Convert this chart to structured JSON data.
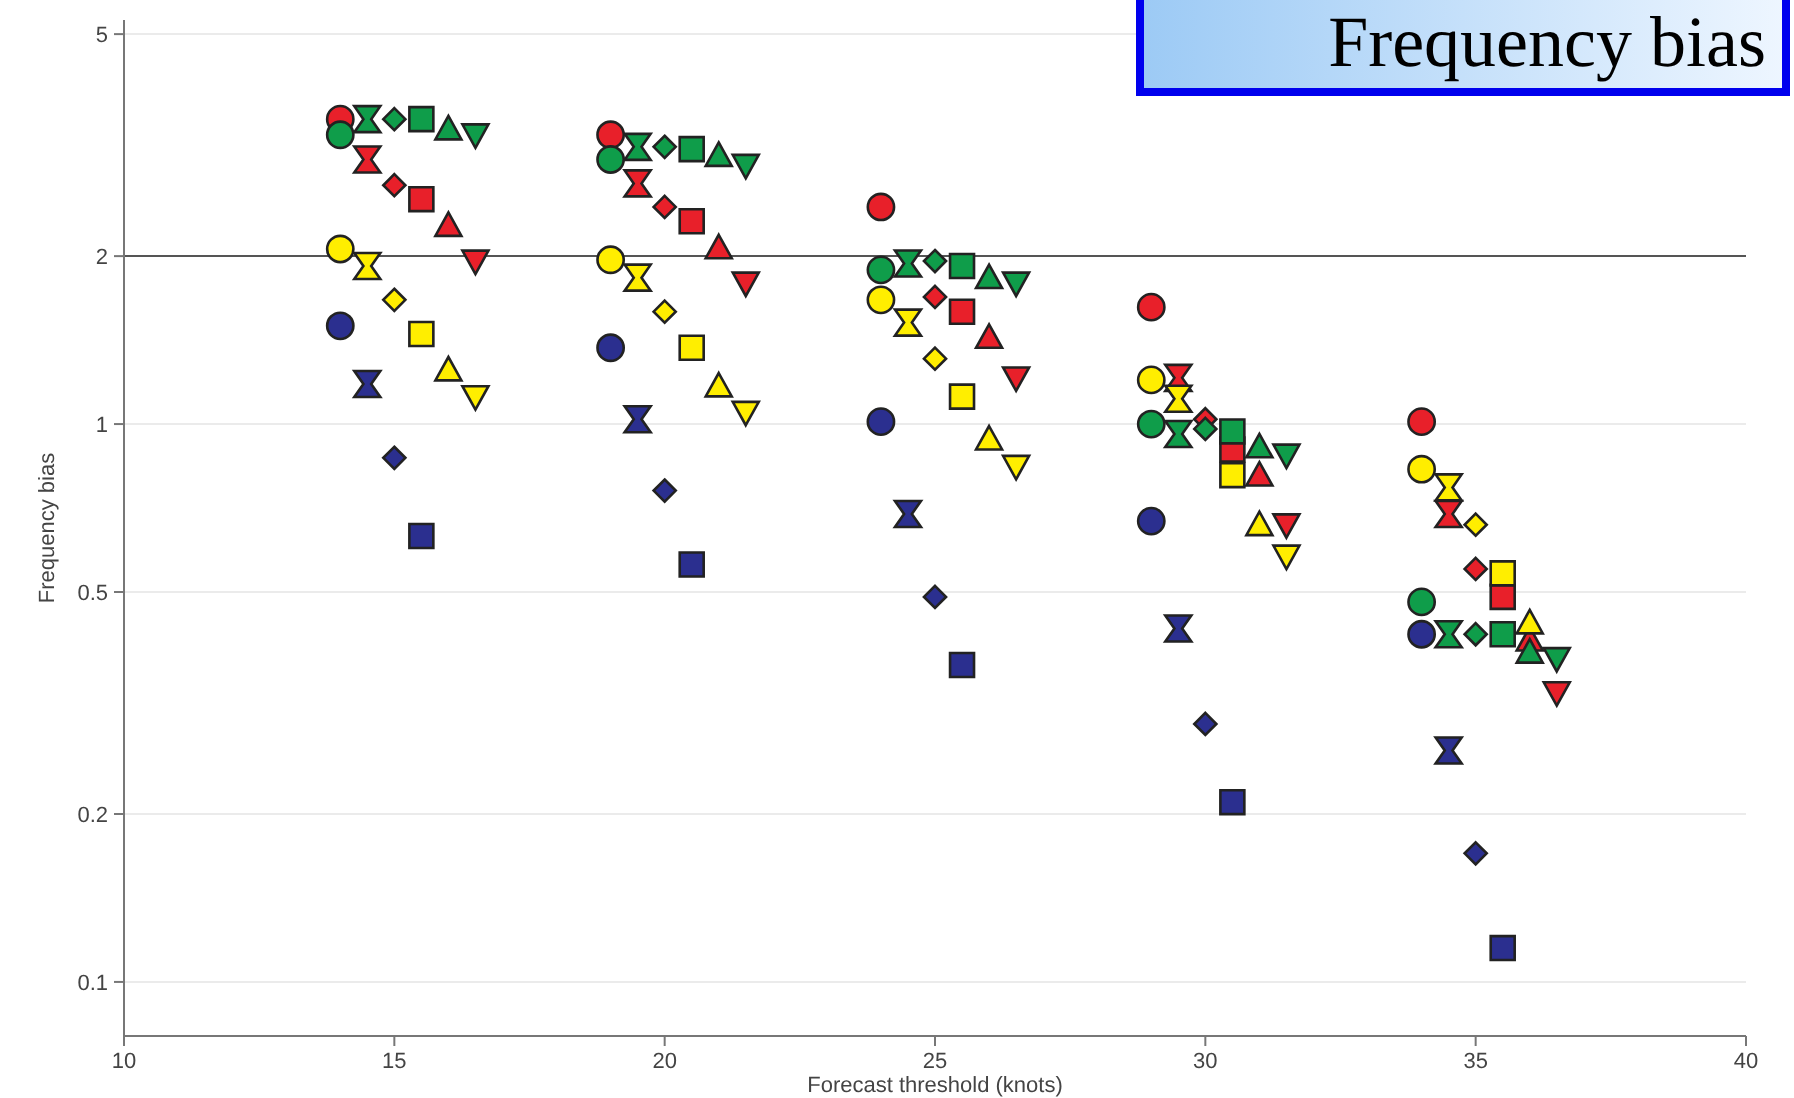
{
  "chart_data": {
    "type": "scatter",
    "title": "Frequency bias",
    "xlabel": "Forecast threshold (knots)",
    "ylabel": "Frequency bias",
    "xlim": [
      10,
      40
    ],
    "xticks": [
      10,
      15,
      20,
      25,
      30,
      35,
      40
    ],
    "ylim": [
      0.08,
      5.3
    ],
    "yticks": [
      0.1,
      0.2,
      0.5,
      1,
      2,
      5
    ],
    "log": "y",
    "grid": "y",
    "ref_lines": [
      {
        "axis": "y",
        "value": 2,
        "color": "#555555"
      }
    ],
    "series": [
      {
        "marker": "circle",
        "color": "#e8202a",
        "x": [
          14,
          19,
          24,
          29,
          34
        ],
        "values": [
          3.52,
          3.3,
          2.45,
          1.62,
          1.01
        ]
      },
      {
        "color": "#e8202a",
        "x": [
          14.5,
          19.5,
          29.5,
          34.5
        ],
        "values": [
          2.98,
          2.7,
          1.21,
          0.69
        ]
      },
      {
        "marker": "diamond",
        "color": "#e8202a",
        "x": [
          15,
          20,
          25,
          30,
          35
        ],
        "values": [
          2.68,
          2.45,
          1.69,
          1.02,
          0.55
        ]
      },
      {
        "marker": "square",
        "color": "#e8202a",
        "x": [
          15.5,
          20.5,
          25.5,
          30.5,
          35.5
        ],
        "values": [
          2.53,
          2.31,
          1.59,
          0.9,
          0.49
        ]
      },
      {
        "marker": "triangle",
        "color": "#e8202a",
        "x": [
          16,
          21,
          26,
          31,
          36
        ],
        "values": [
          2.27,
          2.07,
          1.43,
          0.81,
          0.41
        ]
      },
      {
        "marker": "triangle-down",
        "color": "#e8202a",
        "x": [
          16.5,
          21.5,
          26.5,
          31.5,
          36.5
        ],
        "values": [
          1.96,
          1.79,
          1.21,
          0.66,
          0.33
        ]
      },
      {
        "marker": "circle",
        "color": "#0f9d4a",
        "x": [
          14,
          19,
          24,
          29,
          34
        ],
        "values": [
          3.3,
          2.98,
          1.89,
          1.0,
          0.48
        ]
      },
      {
        "color": "#0f9d4a",
        "x": [
          14.5,
          19.5,
          24.5,
          29.5,
          34.5
        ],
        "values": [
          3.52,
          3.14,
          1.94,
          0.96,
          0.42
        ]
      },
      {
        "marker": "diamond",
        "color": "#0f9d4a",
        "x": [
          15,
          20,
          25,
          30,
          35
        ],
        "values": [
          3.52,
          3.14,
          1.96,
          0.98,
          0.42
        ]
      },
      {
        "marker": "square",
        "color": "#0f9d4a",
        "x": [
          15.5,
          20.5,
          25.5,
          30.5,
          35.5
        ],
        "values": [
          3.52,
          3.11,
          1.92,
          0.97,
          0.42
        ]
      },
      {
        "marker": "triangle",
        "color": "#0f9d4a",
        "x": [
          16,
          21,
          26,
          31,
          36
        ],
        "values": [
          3.38,
          3.03,
          1.83,
          0.91,
          0.39
        ]
      },
      {
        "marker": "triangle-down",
        "color": "#0f9d4a",
        "x": [
          16.5,
          21.5,
          26.5,
          31.5,
          36.5
        ],
        "values": [
          3.3,
          2.91,
          1.79,
          0.88,
          0.38
        ]
      },
      {
        "marker": "circle",
        "color": "#ffee00",
        "x": [
          14,
          19,
          24,
          29,
          34
        ],
        "values": [
          2.06,
          1.97,
          1.67,
          1.2,
          0.83
        ]
      },
      {
        "color": "#ffee00",
        "x": [
          14.5,
          19.5,
          24.5,
          29.5,
          34.5
        ],
        "values": [
          1.92,
          1.83,
          1.52,
          1.11,
          0.77
        ]
      },
      {
        "marker": "diamond",
        "color": "#ffee00",
        "x": [
          15,
          20,
          25,
          35
        ],
        "values": [
          1.67,
          1.59,
          1.31,
          0.66
        ]
      },
      {
        "marker": "square",
        "color": "#ffee00",
        "x": [
          15.5,
          20.5,
          25.5,
          30.5,
          35.5
        ],
        "values": [
          1.45,
          1.37,
          1.12,
          0.81,
          0.54
        ]
      },
      {
        "marker": "triangle",
        "color": "#ffee00",
        "x": [
          16,
          21,
          26,
          31,
          36
        ],
        "values": [
          1.25,
          1.17,
          0.94,
          0.66,
          0.44
        ]
      },
      {
        "marker": "triangle-down",
        "color": "#ffee00",
        "x": [
          16.5,
          21.5,
          26.5,
          31.5
        ],
        "values": [
          1.12,
          1.05,
          0.84,
          0.58
        ]
      },
      {
        "marker": "circle",
        "color": "#2b2f8f",
        "x": [
          14,
          19,
          24,
          29,
          34
        ],
        "values": [
          1.5,
          1.37,
          1.01,
          0.67,
          0.42
        ]
      },
      {
        "color": "#2b2f8f",
        "x": [
          14.5,
          19.5,
          24.5,
          29.5,
          34.5
        ],
        "values": [
          1.18,
          1.02,
          0.69,
          0.43,
          0.26
        ]
      },
      {
        "marker": "diamond",
        "color": "#2b2f8f",
        "x": [
          15,
          20,
          25,
          30,
          35
        ],
        "values": [
          0.87,
          0.76,
          0.49,
          0.29,
          0.17
        ]
      },
      {
        "marker": "square",
        "color": "#2b2f8f",
        "x": [
          15.5,
          20.5,
          25.5,
          30.5,
          35.5
        ],
        "values": [
          0.63,
          0.56,
          0.37,
          0.21,
          0.115
        ]
      }
    ]
  }
}
